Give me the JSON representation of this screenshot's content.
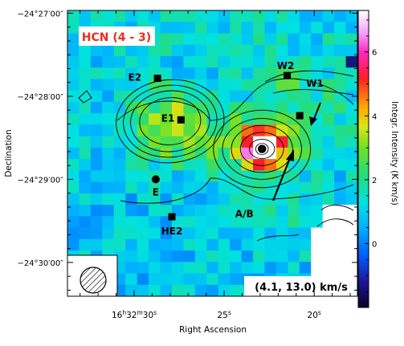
{
  "chart_data": {
    "type": "heatmap",
    "title": "HCN (4 - 3)",
    "velocity_range_label": "(4.1, 13.0) km/s",
    "xlabel": "Right Ascension",
    "ylabel": "Declination",
    "colorbar_label": "Integr. Intensity (K km/s)",
    "colorbar_range": [
      -2,
      7.3
    ],
    "colorbar_ticks": [
      {
        "value": 6,
        "label": "6"
      },
      {
        "value": 4,
        "label": "4"
      },
      {
        "value": 2,
        "label": "2"
      },
      {
        "value": 0,
        "label": "0"
      }
    ],
    "x_range_sec": [
      33.7,
      17.6
    ],
    "y_range_arcsec": [
      -24.4,
      182.0
    ],
    "x_ticks": [
      {
        "value": 30,
        "label_main": "16",
        "h": "h",
        "m_val": "32",
        "m": "m",
        "s_val": "30",
        "s": "s"
      },
      {
        "value": 25,
        "label_main": "25",
        "s": "s"
      },
      {
        "value": 20,
        "label_main": "20",
        "s": "s"
      }
    ],
    "y_ticks": [
      {
        "value": 180,
        "label": "−24°27′00″"
      },
      {
        "value": 120,
        "label": "−24°28′00″"
      },
      {
        "value": 60,
        "label": "−24°29′00″"
      },
      {
        "value": 0,
        "label": "−24°30′00″"
      }
    ],
    "sources": [
      {
        "label": "E2",
        "x": 28.7,
        "y": 133,
        "marker": "square"
      },
      {
        "label": "E1",
        "x": 27.4,
        "y": 103,
        "marker": "square"
      },
      {
        "label": "E",
        "x": 28.8,
        "y": 60,
        "marker": "circle"
      },
      {
        "label": "HE2",
        "x": 27.9,
        "y": 33,
        "marker": "square"
      },
      {
        "label": "W2",
        "x": 21.5,
        "y": 135,
        "marker": "square"
      },
      {
        "label": "W1",
        "x": 20.8,
        "y": 106,
        "marker": "square"
      },
      {
        "label": "A/B",
        "x": 22.9,
        "y": 82,
        "marker": "circle"
      }
    ],
    "peak_intensity": 7.0
  }
}
